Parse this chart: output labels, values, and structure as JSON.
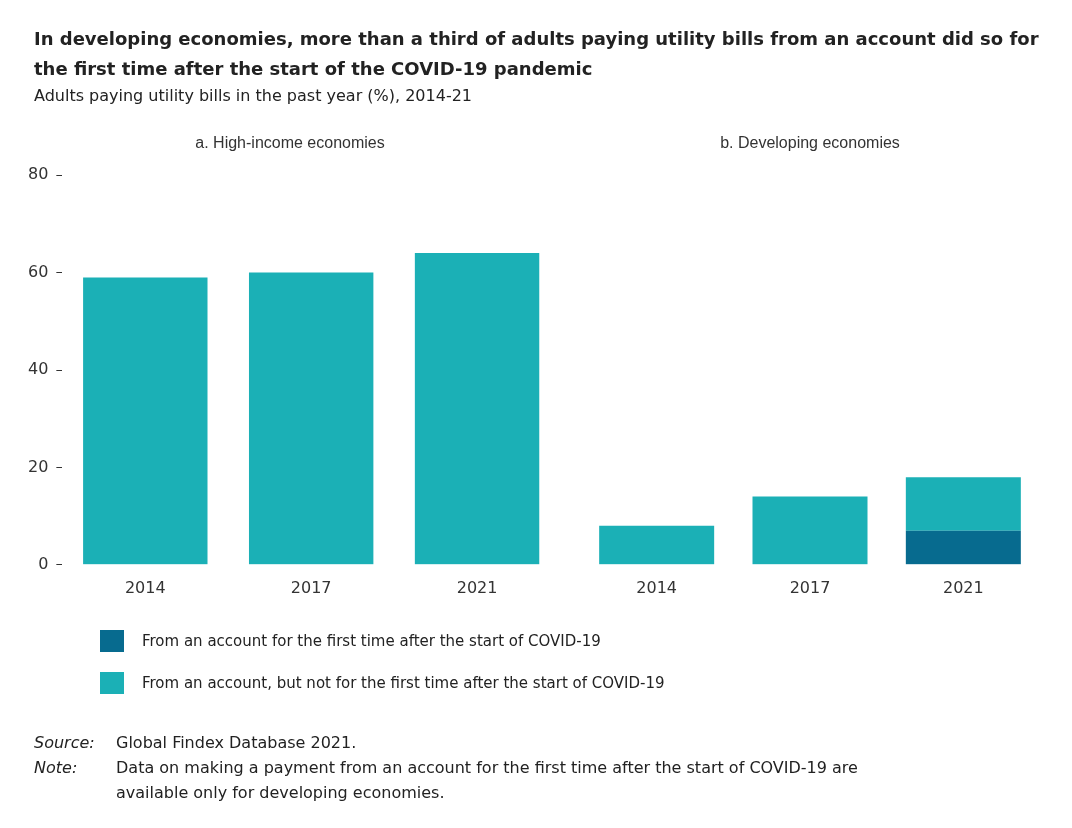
{
  "chart_data": [
    {
      "type": "bar",
      "title": "a. High-income economies",
      "categories": [
        "2014",
        "2017",
        "2021"
      ],
      "series": [
        {
          "color": "#1bb0b6",
          "values": [
            59,
            60,
            64
          ]
        }
      ],
      "stacked": true,
      "ylim": [
        0,
        80
      ],
      "yticks": [
        0,
        20,
        40,
        60,
        80
      ],
      "grid": false,
      "legend": false,
      "annotations": [
        "In developing economies, more than a third of adults paying utility bills from an account did so for the first time after the start of the COVID-19 pandemic",
        "Adults paying utility bills in the past year (%), 2014-21",
        "Source: Global Findex Database 2021.",
        "Note: Data on making a payment from an account for the first time after the start of COVID-19 are available only for developing economies."
      ]
    },
    {
      "type": "bar",
      "title": "b. Developing economies",
      "categories": [
        "2014",
        "2017",
        "2021"
      ],
      "series": [
        {
          "name": "From an account for the first time after the start of COVID-19",
          "color": "#076b8f",
          "values": [
            null,
            null,
            7
          ]
        },
        {
          "name": "From an account, but not for the first time after the start of COVID-19",
          "color": "#1bb0b6",
          "values": [
            8,
            14,
            11
          ]
        }
      ],
      "stacked": true,
      "ylim": [
        0,
        80
      ],
      "yticks": [
        0,
        20,
        40,
        60,
        80
      ],
      "grid": false,
      "legend": "bottom",
      "tick_labels": "x"
    }
  ]
}
